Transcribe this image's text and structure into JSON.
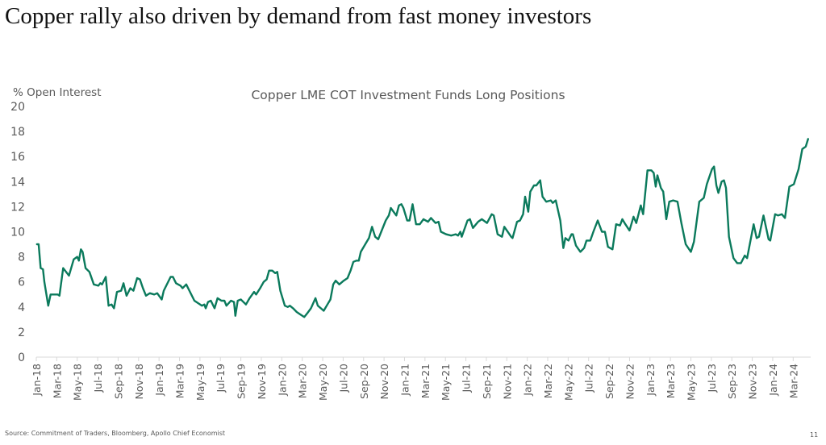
{
  "slide": {
    "title": "Copper rally also driven by demand from fast money investors",
    "source": "Source: Commitment of Traders, Bloomberg, Apollo Chief Economist",
    "page_number": "11"
  },
  "colors": {
    "line": "#0b7a5c",
    "axis": "#d9d9d9",
    "text": "#595959"
  },
  "chart_data": {
    "type": "line",
    "title": "Copper LME COT Investment Funds Long Positions",
    "xlabel": "",
    "ylabel": "% Open Interest",
    "ylim": [
      0,
      20
    ],
    "yticks": [
      0,
      2,
      4,
      6,
      8,
      10,
      12,
      14,
      16,
      18,
      20
    ],
    "xlim": [
      "2018-01-01",
      "2024-05-01"
    ],
    "xtick_labels": [
      "Jan-18",
      "Mar-18",
      "May-18",
      "Jul-18",
      "Sep-18",
      "Nov-18",
      "Jan-19",
      "Mar-19",
      "May-19",
      "Jul-19",
      "Sep-19",
      "Nov-19",
      "Jan-20",
      "Mar-20",
      "May-20",
      "Jul-20",
      "Sep-20",
      "Nov-20",
      "Jan-21",
      "Mar-21",
      "May-21",
      "Jul-21",
      "Sep-21",
      "Nov-21",
      "Jan-22",
      "Mar-22",
      "May-22",
      "Jul-22",
      "Sep-22",
      "Nov-22",
      "Jan-23",
      "Mar-23",
      "May-23",
      "Jul-23",
      "Sep-23",
      "Nov-23",
      "Jan-24",
      "Mar-24"
    ],
    "grid": false,
    "legend": "none",
    "series": [
      {
        "name": "Investment Funds Long Positions (% Open Interest)",
        "points": [
          [
            "2018-01-03",
            9.0
          ],
          [
            "2018-01-08",
            9.0
          ],
          [
            "2018-01-14",
            7.1
          ],
          [
            "2018-01-21",
            7.0
          ],
          [
            "2018-01-25",
            6.0
          ],
          [
            "2018-02-06",
            4.1
          ],
          [
            "2018-02-13",
            5.0
          ],
          [
            "2018-03-04",
            5.0
          ],
          [
            "2018-03-09",
            4.9
          ],
          [
            "2018-03-20",
            7.1
          ],
          [
            "2018-04-07",
            6.5
          ],
          [
            "2018-04-21",
            7.8
          ],
          [
            "2018-05-01",
            8.0
          ],
          [
            "2018-05-06",
            7.7
          ],
          [
            "2018-05-12",
            8.6
          ],
          [
            "2018-05-17",
            8.4
          ],
          [
            "2018-05-26",
            7.1
          ],
          [
            "2018-06-07",
            6.8
          ],
          [
            "2018-06-20",
            5.8
          ],
          [
            "2018-07-03",
            5.7
          ],
          [
            "2018-07-09",
            5.9
          ],
          [
            "2018-07-14",
            5.8
          ],
          [
            "2018-07-25",
            6.4
          ],
          [
            "2018-08-03",
            4.1
          ],
          [
            "2018-08-12",
            4.2
          ],
          [
            "2018-08-19",
            3.9
          ],
          [
            "2018-08-28",
            5.2
          ],
          [
            "2018-09-10",
            5.3
          ],
          [
            "2018-09-17",
            5.9
          ],
          [
            "2018-09-26",
            4.9
          ],
          [
            "2018-10-07",
            5.5
          ],
          [
            "2018-10-16",
            5.3
          ],
          [
            "2018-10-27",
            6.3
          ],
          [
            "2018-11-05",
            6.2
          ],
          [
            "2018-11-14",
            5.5
          ],
          [
            "2018-11-23",
            4.9
          ],
          [
            "2018-12-04",
            5.1
          ],
          [
            "2018-12-17",
            5.0
          ],
          [
            "2018-12-26",
            5.1
          ],
          [
            "2019-01-09",
            4.6
          ],
          [
            "2019-01-15",
            5.3
          ],
          [
            "2019-02-05",
            6.4
          ],
          [
            "2019-02-12",
            6.4
          ],
          [
            "2019-02-21",
            5.9
          ],
          [
            "2019-03-04",
            5.7
          ],
          [
            "2019-03-10",
            5.5
          ],
          [
            "2019-03-21",
            5.8
          ],
          [
            "2019-04-15",
            4.5
          ],
          [
            "2019-05-07",
            4.1
          ],
          [
            "2019-05-14",
            4.2
          ],
          [
            "2019-05-18",
            3.9
          ],
          [
            "2019-05-25",
            4.4
          ],
          [
            "2019-06-03",
            4.5
          ],
          [
            "2019-06-14",
            3.9
          ],
          [
            "2019-06-23",
            4.7
          ],
          [
            "2019-07-04",
            4.5
          ],
          [
            "2019-07-13",
            4.5
          ],
          [
            "2019-07-19",
            4.1
          ],
          [
            "2019-08-02",
            4.5
          ],
          [
            "2019-08-11",
            4.4
          ],
          [
            "2019-08-15",
            3.3
          ],
          [
            "2019-08-22",
            4.5
          ],
          [
            "2019-09-01",
            4.6
          ],
          [
            "2019-09-16",
            4.2
          ],
          [
            "2019-09-27",
            4.7
          ],
          [
            "2019-10-10",
            5.2
          ],
          [
            "2019-10-16",
            5.0
          ],
          [
            "2019-10-28",
            5.5
          ],
          [
            "2019-11-08",
            6.0
          ],
          [
            "2019-11-17",
            6.2
          ],
          [
            "2019-11-24",
            6.9
          ],
          [
            "2019-12-03",
            6.9
          ],
          [
            "2019-12-12",
            6.7
          ],
          [
            "2019-12-18",
            6.8
          ],
          [
            "2019-12-27",
            5.3
          ],
          [
            "2020-01-10",
            4.1
          ],
          [
            "2020-01-19",
            4.0
          ],
          [
            "2020-01-25",
            4.1
          ],
          [
            "2020-02-04",
            3.9
          ],
          [
            "2020-02-15",
            3.6
          ],
          [
            "2020-02-26",
            3.4
          ],
          [
            "2020-03-07",
            3.2
          ],
          [
            "2020-03-16",
            3.5
          ],
          [
            "2020-03-27",
            3.9
          ],
          [
            "2020-04-10",
            4.7
          ],
          [
            "2020-04-17",
            4.1
          ],
          [
            "2020-04-26",
            3.9
          ],
          [
            "2020-05-04",
            3.7
          ],
          [
            "2020-05-15",
            4.2
          ],
          [
            "2020-05-24",
            4.6
          ],
          [
            "2020-06-02",
            5.8
          ],
          [
            "2020-06-09",
            6.1
          ],
          [
            "2020-06-20",
            5.8
          ],
          [
            "2020-07-03",
            6.1
          ],
          [
            "2020-07-14",
            6.3
          ],
          [
            "2020-07-23",
            6.9
          ],
          [
            "2020-08-01",
            7.6
          ],
          [
            "2020-08-10",
            7.7
          ],
          [
            "2020-08-17",
            7.7
          ],
          [
            "2020-08-23",
            8.4
          ],
          [
            "2020-09-06",
            9.0
          ],
          [
            "2020-09-17",
            9.5
          ],
          [
            "2020-09-26",
            10.4
          ],
          [
            "2020-10-05",
            9.6
          ],
          [
            "2020-10-14",
            9.4
          ],
          [
            "2020-10-23",
            10.0
          ],
          [
            "2020-11-06",
            10.9
          ],
          [
            "2020-11-15",
            11.3
          ],
          [
            "2020-11-21",
            11.9
          ],
          [
            "2020-12-07",
            11.3
          ],
          [
            "2020-12-15",
            12.1
          ],
          [
            "2020-12-22",
            12.2
          ],
          [
            "2020-12-28",
            11.9
          ],
          [
            "2021-01-09",
            10.9
          ],
          [
            "2021-01-16",
            10.9
          ],
          [
            "2021-01-25",
            12.2
          ],
          [
            "2021-02-05",
            10.6
          ],
          [
            "2021-02-16",
            10.6
          ],
          [
            "2021-02-27",
            11.0
          ],
          [
            "2021-03-10",
            10.8
          ],
          [
            "2021-03-19",
            11.1
          ],
          [
            "2021-04-02",
            10.7
          ],
          [
            "2021-04-11",
            10.8
          ],
          [
            "2021-04-18",
            10.0
          ],
          [
            "2021-05-03",
            9.8
          ],
          [
            "2021-05-18",
            9.7
          ],
          [
            "2021-06-01",
            9.8
          ],
          [
            "2021-06-08",
            9.7
          ],
          [
            "2021-06-15",
            10.0
          ],
          [
            "2021-06-19",
            9.6
          ],
          [
            "2021-07-06",
            10.9
          ],
          [
            "2021-07-13",
            11.0
          ],
          [
            "2021-07-22",
            10.3
          ],
          [
            "2021-08-07",
            10.8
          ],
          [
            "2021-08-18",
            11.0
          ],
          [
            "2021-09-03",
            10.7
          ],
          [
            "2021-09-17",
            11.4
          ],
          [
            "2021-09-23",
            11.3
          ],
          [
            "2021-10-04",
            9.8
          ],
          [
            "2021-10-17",
            9.6
          ],
          [
            "2021-10-24",
            10.4
          ],
          [
            "2021-11-14",
            9.6
          ],
          [
            "2021-11-18",
            9.5
          ],
          [
            "2021-12-01",
            10.8
          ],
          [
            "2021-12-10",
            10.9
          ],
          [
            "2021-12-19",
            11.4
          ],
          [
            "2021-12-25",
            12.8
          ],
          [
            "2022-01-04",
            11.6
          ],
          [
            "2022-01-10",
            13.2
          ],
          [
            "2022-01-21",
            13.7
          ],
          [
            "2022-01-28",
            13.7
          ],
          [
            "2022-02-09",
            14.1
          ],
          [
            "2022-02-16",
            12.8
          ],
          [
            "2022-02-27",
            12.4
          ],
          [
            "2022-03-10",
            12.5
          ],
          [
            "2022-03-16",
            12.3
          ],
          [
            "2022-03-25",
            12.5
          ],
          [
            "2022-04-08",
            10.9
          ],
          [
            "2022-04-17",
            8.7
          ],
          [
            "2022-04-23",
            9.5
          ],
          [
            "2022-05-02",
            9.3
          ],
          [
            "2022-05-11",
            9.8
          ],
          [
            "2022-05-15",
            9.8
          ],
          [
            "2022-05-24",
            8.9
          ],
          [
            "2022-06-07",
            8.4
          ],
          [
            "2022-06-18",
            8.7
          ],
          [
            "2022-06-25",
            9.3
          ],
          [
            "2022-07-06",
            9.3
          ],
          [
            "2022-07-15",
            10.0
          ],
          [
            "2022-07-28",
            10.9
          ],
          [
            "2022-08-10",
            10.0
          ],
          [
            "2022-08-19",
            10.0
          ],
          [
            "2022-08-28",
            8.8
          ],
          [
            "2022-09-11",
            8.6
          ],
          [
            "2022-09-22",
            10.6
          ],
          [
            "2022-10-03",
            10.5
          ],
          [
            "2022-10-10",
            11.0
          ],
          [
            "2022-10-19",
            10.6
          ],
          [
            "2022-11-01",
            10.1
          ],
          [
            "2022-11-13",
            11.2
          ],
          [
            "2022-11-21",
            10.7
          ],
          [
            "2022-12-04",
            12.1
          ],
          [
            "2022-12-11",
            11.4
          ],
          [
            "2022-12-24",
            14.9
          ],
          [
            "2023-01-05",
            14.9
          ],
          [
            "2023-01-12",
            14.7
          ],
          [
            "2023-01-18",
            13.6
          ],
          [
            "2023-01-23",
            14.5
          ],
          [
            "2023-02-03",
            13.5
          ],
          [
            "2023-02-10",
            13.2
          ],
          [
            "2023-02-19",
            11.0
          ],
          [
            "2023-02-28",
            12.4
          ],
          [
            "2023-03-09",
            12.5
          ],
          [
            "2023-03-22",
            12.4
          ],
          [
            "2023-04-03",
            10.7
          ],
          [
            "2023-04-16",
            9.0
          ],
          [
            "2023-05-01",
            8.4
          ],
          [
            "2023-05-10",
            9.2
          ],
          [
            "2023-05-26",
            12.4
          ],
          [
            "2023-06-09",
            12.7
          ],
          [
            "2023-06-18",
            13.8
          ],
          [
            "2023-07-03",
            15.0
          ],
          [
            "2023-07-09",
            15.2
          ],
          [
            "2023-07-16",
            13.7
          ],
          [
            "2023-07-22",
            13.1
          ],
          [
            "2023-08-01",
            14.0
          ],
          [
            "2023-08-08",
            14.1
          ],
          [
            "2023-08-14",
            13.5
          ],
          [
            "2023-08-23",
            9.6
          ],
          [
            "2023-09-06",
            7.9
          ],
          [
            "2023-09-17",
            7.5
          ],
          [
            "2023-09-28",
            7.5
          ],
          [
            "2023-10-09",
            8.1
          ],
          [
            "2023-10-16",
            7.9
          ],
          [
            "2023-11-05",
            10.6
          ],
          [
            "2023-11-14",
            9.5
          ],
          [
            "2023-11-21",
            9.6
          ],
          [
            "2023-12-04",
            11.3
          ],
          [
            "2023-12-19",
            9.4
          ],
          [
            "2023-12-24",
            9.3
          ],
          [
            "2024-01-08",
            11.4
          ],
          [
            "2024-01-17",
            11.3
          ],
          [
            "2024-01-28",
            11.4
          ],
          [
            "2024-02-07",
            11.1
          ],
          [
            "2024-02-20",
            13.6
          ],
          [
            "2024-03-03",
            13.8
          ],
          [
            "2024-03-17",
            15.0
          ],
          [
            "2024-03-28",
            16.6
          ],
          [
            "2024-04-08",
            16.8
          ],
          [
            "2024-04-15",
            17.4
          ]
        ]
      }
    ]
  }
}
